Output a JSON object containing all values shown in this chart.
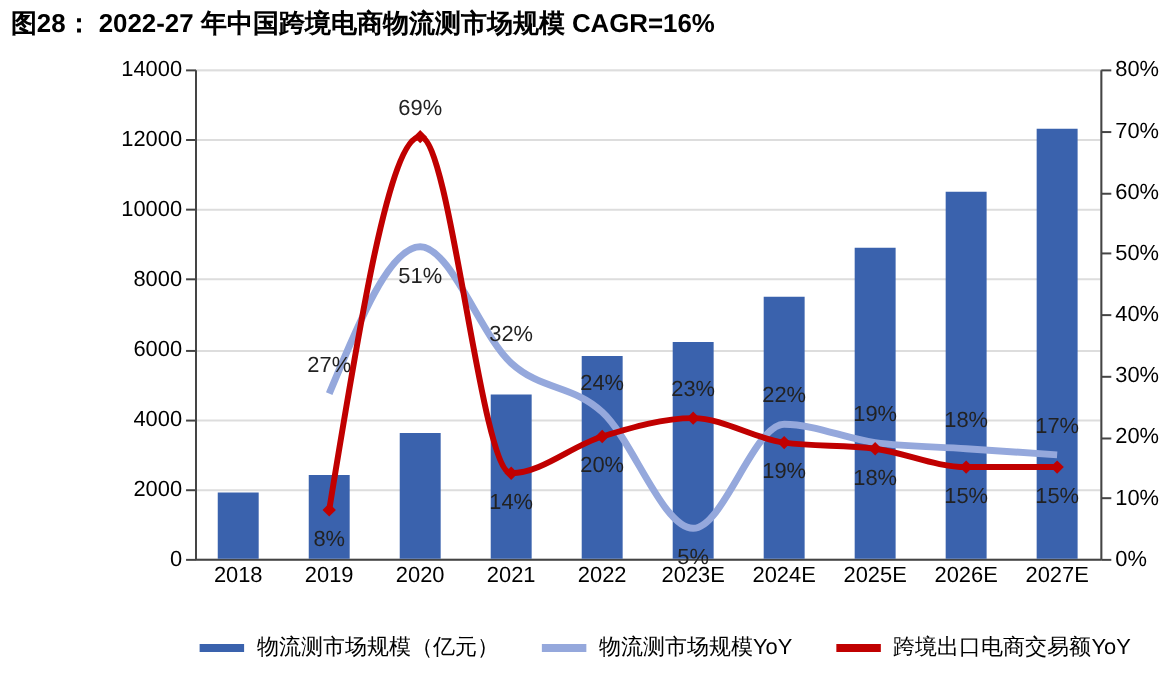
{
  "chart_data": {
    "type": "bar",
    "title": "图28：  2022-27 年中国跨境电商物流测市场规模  CAGR=16%",
    "categories": [
      "2018",
      "2019",
      "2020",
      "2021",
      "2022",
      "2023E",
      "2024E",
      "2025E",
      "2026E",
      "2027E"
    ],
    "series": [
      {
        "name": "物流测市场规模（亿元）",
        "color": "#3a62ad",
        "values": [
          1900,
          2400,
          3600,
          4700,
          5800,
          6200,
          7500,
          8900,
          10500,
          12300
        ]
      },
      {
        "name": "物流测市场规模YoY",
        "type": "line",
        "axis": "y2",
        "color": "#95a8dc",
        "marker": "none",
        "values": [
          null,
          27,
          51,
          32,
          24,
          5,
          22,
          19,
          18,
          17
        ],
        "value_labels": [
          null,
          "27%",
          "51%",
          "32%",
          "24%",
          "5%",
          "22%",
          "19%",
          "18%",
          "17%"
        ]
      },
      {
        "name": "跨境出口电商交易额YoY",
        "type": "line",
        "axis": "y2",
        "color": "#c00000",
        "marker": "diamond",
        "values": [
          null,
          8,
          69,
          14,
          20,
          23,
          19,
          18,
          15,
          15
        ],
        "value_labels": [
          null,
          "8%",
          "69%",
          "14%",
          "20%",
          "23%",
          "19%",
          "18%",
          "15%",
          "15%"
        ]
      }
    ],
    "ylim": [
      0,
      14000
    ],
    "yticks": [
      0,
      2000,
      4000,
      6000,
      8000,
      10000,
      12000,
      14000
    ],
    "y2lim": [
      0,
      80
    ],
    "y2ticks": [
      {
        "value": 0,
        "label": "0%"
      },
      {
        "value": 10,
        "label": "10%"
      },
      {
        "value": 20,
        "label": "20%"
      },
      {
        "value": 30,
        "label": "30%"
      },
      {
        "value": 40,
        "label": "40%"
      },
      {
        "value": 50,
        "label": "50%"
      },
      {
        "value": 60,
        "label": "60%"
      },
      {
        "value": 70,
        "label": "70%"
      },
      {
        "value": 80,
        "label": "80%"
      }
    ],
    "grid": "y",
    "legend": "bottom"
  }
}
